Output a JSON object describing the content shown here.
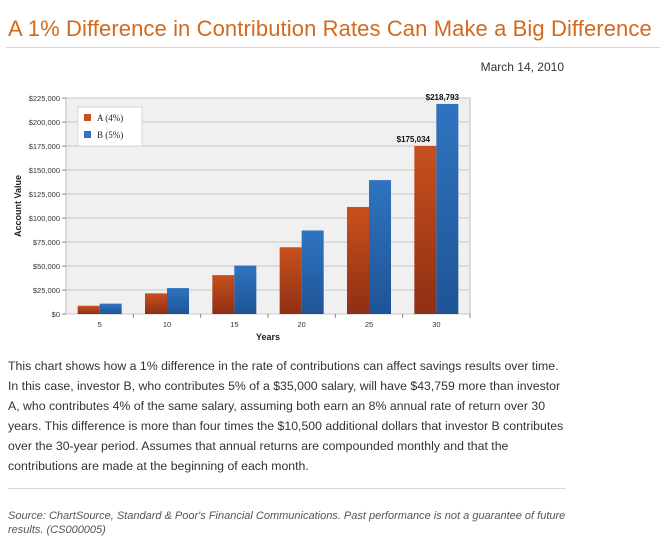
{
  "page": {
    "title": "A 1% Difference in Contribution Rates Can Make a Big Difference",
    "date": "March 14, 2010",
    "body": "This chart shows how a 1% difference in the rate of contributions can affect savings results over time. In this case, investor B, who contributes 5% of a $35,000 salary, will have $43,759 more than investor A, who contributes 4% of the same salary, assuming both earn an 8% annual rate of return over 30 years. This difference is more than four times the $10,500 additional dollars that investor B contributes over the 30-year period. Assumes that annual returns are compounded monthly and that the contributions are made at the beginning of each month.",
    "source": "Source: ChartSource, Standard & Poor's Financial Communications. Past performance is not a guarantee of future results. (CS000005)"
  },
  "colors": {
    "title": "#d2691e",
    "series_a": "#c8501e",
    "series_b": "#2f74c0",
    "plot_bg": "#f0f0f0",
    "grid": "#c8c8c8"
  },
  "chart_data": {
    "type": "bar",
    "xlabel": "Years",
    "ylabel": "Account Value",
    "ylim": [
      0,
      225000
    ],
    "ytick_step": 25000,
    "categories": [
      "5",
      "10",
      "15",
      "20",
      "25",
      "30"
    ],
    "series": [
      {
        "name": "A (4%)",
        "color": "#c8501e",
        "values": [
          8600,
          21500,
          40500,
          69500,
          111500,
          175034
        ]
      },
      {
        "name": "B (5%)",
        "color": "#2f74c0",
        "values": [
          10800,
          27000,
          50500,
          87000,
          139500,
          218793
        ]
      }
    ],
    "data_labels": [
      {
        "series": 0,
        "index": 5,
        "text": "$175,034"
      },
      {
        "series": 1,
        "index": 5,
        "text": "$218,793"
      }
    ],
    "ytick_labels": [
      "$0",
      "$25,000",
      "$50,000",
      "$75,000",
      "$100,000",
      "$125,000",
      "$150,000",
      "$175,000",
      "$200,000",
      "$225,000"
    ],
    "legend_position": "top-left"
  }
}
